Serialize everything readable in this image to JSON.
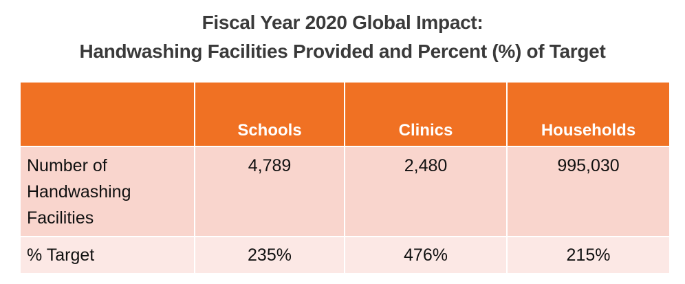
{
  "title": {
    "line1": "Fiscal Year 2020 Global Impact:",
    "line2": "Handwashing Facilities Provided and Percent (%) of Target"
  },
  "table": {
    "headers": [
      "",
      "Schools",
      "Clinics",
      "Households"
    ],
    "rows": [
      {
        "label_lines": [
          "Number of",
          "Handwashing",
          "Facilities"
        ],
        "values": [
          "4,789",
          "2,480",
          "995,030"
        ]
      },
      {
        "label_lines": [
          "% Target"
        ],
        "values": [
          "235%",
          "476%",
          "215%"
        ]
      }
    ]
  },
  "colors": {
    "header_bg": "#F07123",
    "row1_bg": "#F9D5CD",
    "row2_bg": "#FCE8E5",
    "title_text": "#3a3a3a"
  },
  "chart_data": {
    "type": "table",
    "title": "Fiscal Year 2020 Global Impact: Handwashing Facilities Provided and Percent (%) of Target",
    "columns": [
      "Schools",
      "Clinics",
      "Households"
    ],
    "rows": [
      {
        "name": "Number of Handwashing Facilities",
        "values": [
          4789,
          2480,
          995030
        ]
      },
      {
        "name": "% Target",
        "values": [
          235,
          476,
          215
        ],
        "unit": "%"
      }
    ]
  }
}
